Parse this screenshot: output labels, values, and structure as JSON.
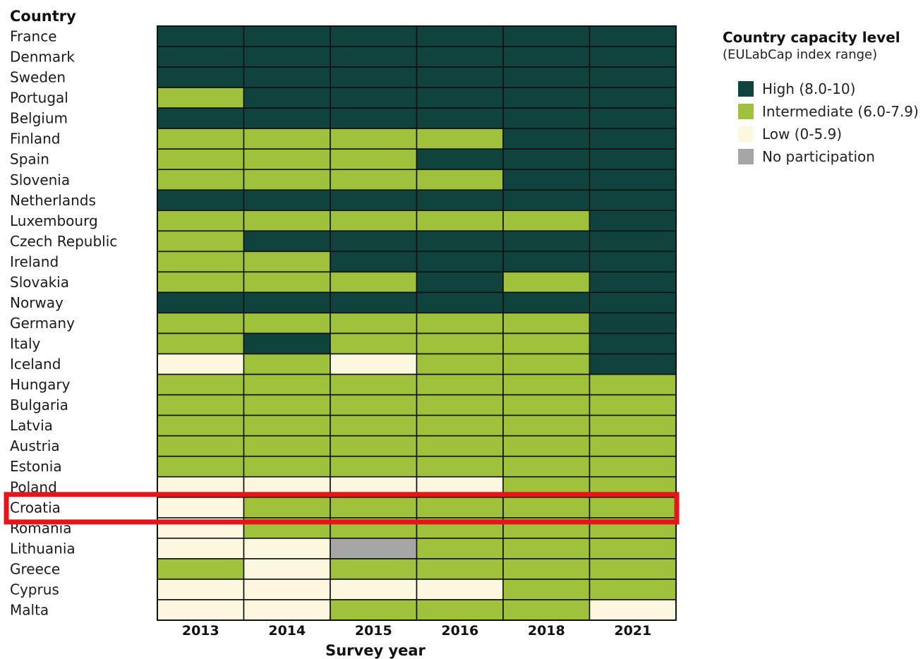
{
  "chart_data": {
    "type": "heatmap",
    "ylabel": "Country",
    "xlabel": "Survey year",
    "x": [
      "2013",
      "2014",
      "2015",
      "2016",
      "2018",
      "2021"
    ],
    "y": [
      "France",
      "Denmark",
      "Sweden",
      "Portugal",
      "Belgium",
      "Finland",
      "Spain",
      "Slovenia",
      "Netherlands",
      "Luxembourg",
      "Czech Republic",
      "Ireland",
      "Slovakia",
      "Norway",
      "Germany",
      "Italy",
      "Iceland",
      "Hungary",
      "Bulgaria",
      "Latvia",
      "Austria",
      "Estonia",
      "Poland",
      "Croatia",
      "Romania",
      "Lithuania",
      "Greece",
      "Cyprus",
      "Malta"
    ],
    "values": [
      [
        "H",
        "H",
        "H",
        "H",
        "H",
        "H"
      ],
      [
        "H",
        "H",
        "H",
        "H",
        "H",
        "H"
      ],
      [
        "H",
        "H",
        "H",
        "H",
        "H",
        "H"
      ],
      [
        "I",
        "H",
        "H",
        "H",
        "H",
        "H"
      ],
      [
        "H",
        "H",
        "H",
        "H",
        "H",
        "H"
      ],
      [
        "I",
        "I",
        "I",
        "I",
        "H",
        "H"
      ],
      [
        "I",
        "I",
        "I",
        "H",
        "H",
        "H"
      ],
      [
        "I",
        "I",
        "I",
        "I",
        "H",
        "H"
      ],
      [
        "H",
        "H",
        "H",
        "H",
        "H",
        "H"
      ],
      [
        "I",
        "I",
        "I",
        "I",
        "I",
        "H"
      ],
      [
        "I",
        "H",
        "H",
        "H",
        "H",
        "H"
      ],
      [
        "I",
        "I",
        "H",
        "H",
        "H",
        "H"
      ],
      [
        "I",
        "I",
        "I",
        "H",
        "I",
        "H"
      ],
      [
        "H",
        "H",
        "H",
        "H",
        "H",
        "H"
      ],
      [
        "I",
        "I",
        "I",
        "I",
        "I",
        "H"
      ],
      [
        "I",
        "H",
        "I",
        "I",
        "I",
        "H"
      ],
      [
        "L",
        "I",
        "L",
        "I",
        "I",
        "H"
      ],
      [
        "I",
        "I",
        "I",
        "I",
        "I",
        "I"
      ],
      [
        "I",
        "I",
        "I",
        "I",
        "I",
        "I"
      ],
      [
        "I",
        "I",
        "I",
        "I",
        "I",
        "I"
      ],
      [
        "I",
        "I",
        "I",
        "I",
        "I",
        "I"
      ],
      [
        "I",
        "I",
        "I",
        "I",
        "I",
        "I"
      ],
      [
        "L",
        "L",
        "L",
        "L",
        "I",
        "I"
      ],
      [
        "L",
        "I",
        "I",
        "I",
        "I",
        "I"
      ],
      [
        "L",
        "I",
        "I",
        "I",
        "I",
        "I"
      ],
      [
        "L",
        "L",
        "N",
        "I",
        "I",
        "I"
      ],
      [
        "I",
        "L",
        "I",
        "I",
        "I",
        "I"
      ],
      [
        "L",
        "L",
        "L",
        "L",
        "I",
        "I"
      ],
      [
        "L",
        "L",
        "I",
        "I",
        "I",
        "L"
      ]
    ],
    "categories": [
      {
        "key": "H",
        "label": "High (8.0-10)",
        "color": "#10433d"
      },
      {
        "key": "I",
        "label": "Intermediate (6.0-7.9)",
        "color": "#a0c13c"
      },
      {
        "key": "L",
        "label": "Low (0-5.9)",
        "color": "#fcf8e0"
      },
      {
        "key": "N",
        "label": "No participation",
        "color": "#a6a6a6"
      }
    ],
    "highlight": {
      "row": "Croatia",
      "color": "#e8141b"
    },
    "legend_title": "Country capacity level",
    "legend_subtitle": "(EULabCap index range)",
    "legend_position": "right"
  }
}
